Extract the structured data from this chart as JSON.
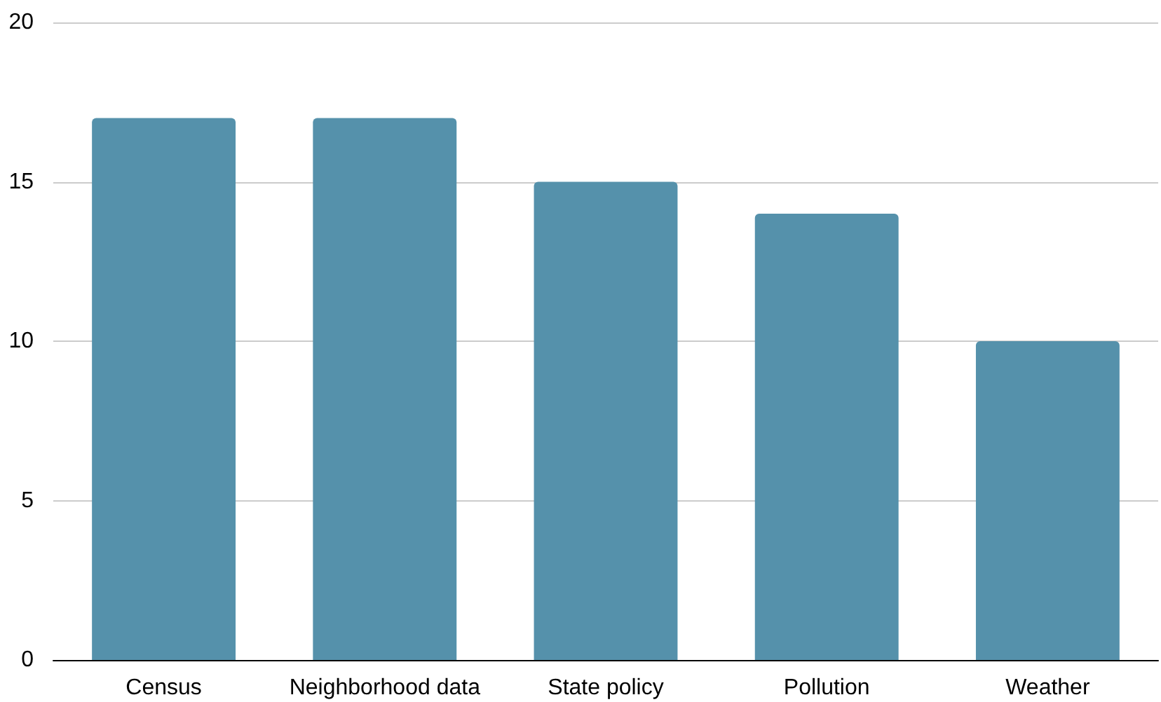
{
  "chart_data": {
    "type": "bar",
    "categories": [
      "Census",
      "Neighborhood data",
      "State policy",
      "Pollution",
      "Weather"
    ],
    "values": [
      17,
      17,
      15,
      14,
      10
    ],
    "color": "#5591ab",
    "ylim": [
      0,
      20
    ],
    "yticks": [
      0,
      5,
      10,
      15,
      20
    ],
    "grid": "y"
  }
}
